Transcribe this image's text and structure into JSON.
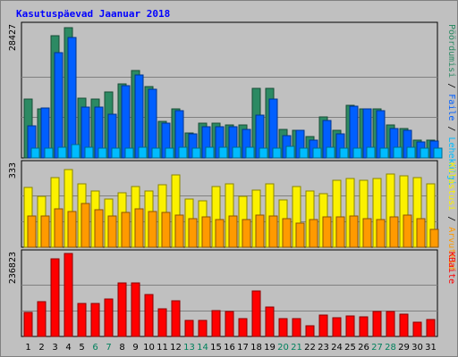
{
  "chart_data": {
    "type": "bar",
    "title": "Kasutuspäevad Jaanuar 2018",
    "colors": {
      "background": "#c0c0c0",
      "title": "#0000ff",
      "frame": "#000000",
      "grid": "#808080",
      "pages": "#0070a0",
      "hits": "#00bcff",
      "visits": "#fbf100",
      "files": "#005fff",
      "pageviews": "#2c8a63",
      "unique_visitors": "#ff9a00",
      "kbytes": "#ff0000",
      "weekend_label": "#00805c",
      "weekday_label": "#000000"
    },
    "days": [
      "1",
      "2",
      "3",
      "4",
      "5",
      "6",
      "7",
      "8",
      "9",
      "10",
      "11",
      "12",
      "13",
      "14",
      "15",
      "16",
      "17",
      "18",
      "19",
      "20",
      "21",
      "22",
      "23",
      "24",
      "25",
      "26",
      "27",
      "28",
      "29",
      "30",
      "31"
    ],
    "weekend_days": [
      "6",
      "7",
      "13",
      "14",
      "20",
      "21",
      "27",
      "28"
    ],
    "panels": [
      {
        "id": "hits",
        "max_label": "28427",
        "ylim": [
          0,
          28427
        ],
        "side_labels": [
          {
            "text": "Pöördumisi",
            "color": "#2c8a63"
          },
          {
            "text": " / ",
            "color": "#000000"
          },
          {
            "text": "Faile",
            "color": "#005fff"
          },
          {
            "text": " / ",
            "color": "#000000"
          },
          {
            "text": "Lehekülgi",
            "color": "#00bcff"
          }
        ],
        "series": [
          {
            "name": "Pöördumisi",
            "color": "#2c8a63",
            "offset": 0,
            "values": [
              12600,
              10500,
              26400,
              28000,
              12900,
              12600,
              14200,
              16000,
              18900,
              15400,
              7900,
              10500,
              5400,
              7500,
              7500,
              7200,
              7200,
              15000,
              15000,
              6200,
              6000,
              4700,
              8800,
              6000,
              11300,
              10500,
              10500,
              7100,
              6400,
              3900,
              3900
            ]
          },
          {
            "name": "Faile",
            "color": "#005fff",
            "offset": 1,
            "values": [
              7000,
              10700,
              22700,
              25900,
              10900,
              10900,
              9500,
              15600,
              17900,
              14700,
              7500,
              10100,
              5100,
              6800,
              6800,
              6800,
              6200,
              9300,
              12600,
              4800,
              6000,
              3900,
              8000,
              5100,
              11100,
              10500,
              10100,
              6300,
              6000,
              3500,
              3700
            ]
          },
          {
            "name": "Lehekülgi",
            "color": "#00bcff",
            "offset": 2,
            "values": [
              2100,
              2200,
              2300,
              2800,
              2400,
              2100,
              2100,
              2200,
              2300,
              2100,
              2200,
              2300,
              2100,
              2300,
              2400,
              2300,
              2300,
              2200,
              2100,
              2500,
              2100,
              2100,
              2300,
              2200,
              2100,
              2300,
              2200,
              2300,
              2300,
              2100,
              2100
            ]
          }
        ]
      },
      {
        "id": "visits",
        "max_label": "333",
        "ylim": [
          0,
          333
        ],
        "side_labels": [
          {
            "text": "Külastusi",
            "color": "#fbf100"
          },
          {
            "text": " / ",
            "color": "#000000"
          },
          {
            "text": "Arvuteid",
            "color": "#ff9a00"
          }
        ],
        "series": [
          {
            "name": "Külastusi",
            "color": "#fbf100",
            "offset": 0,
            "values": [
              240,
              205,
              280,
              310,
              255,
              225,
              195,
              220,
              245,
              225,
              250,
              290,
              195,
              185,
              245,
              255,
              205,
              230,
              255,
              190,
              245,
              225,
              215,
              270,
              275,
              270,
              275,
              295,
              285,
              280,
              255
            ]
          },
          {
            "name": "Arvuteid",
            "color": "#ff9a00",
            "offset": 1,
            "values": [
              125,
              125,
              155,
              145,
              175,
              150,
              125,
              140,
              155,
              145,
              140,
              130,
              115,
              120,
              110,
              125,
              110,
              130,
              125,
              115,
              95,
              110,
              120,
              120,
              125,
              115,
              110,
              120,
              130,
              115,
              70
            ]
          }
        ]
      },
      {
        "id": "kbytes",
        "max_label": "236823",
        "ylim": [
          0,
          236823
        ],
        "side_labels": [
          {
            "text": "KBaite",
            "color": "#ff0000"
          }
        ],
        "series": [
          {
            "name": "KBaite",
            "color": "#ff0000",
            "offset": 0,
            "values": [
              69000,
              100000,
              222000,
              236000,
              93000,
              95000,
              106000,
              153000,
              153000,
              120000,
              78000,
              101000,
              46000,
              45000,
              73000,
              72000,
              52000,
              130000,
              84000,
              51000,
              52000,
              30000,
              61000,
              53000,
              58000,
              56000,
              71000,
              71000,
              63000,
              40000,
              48000
            ]
          }
        ]
      }
    ]
  }
}
